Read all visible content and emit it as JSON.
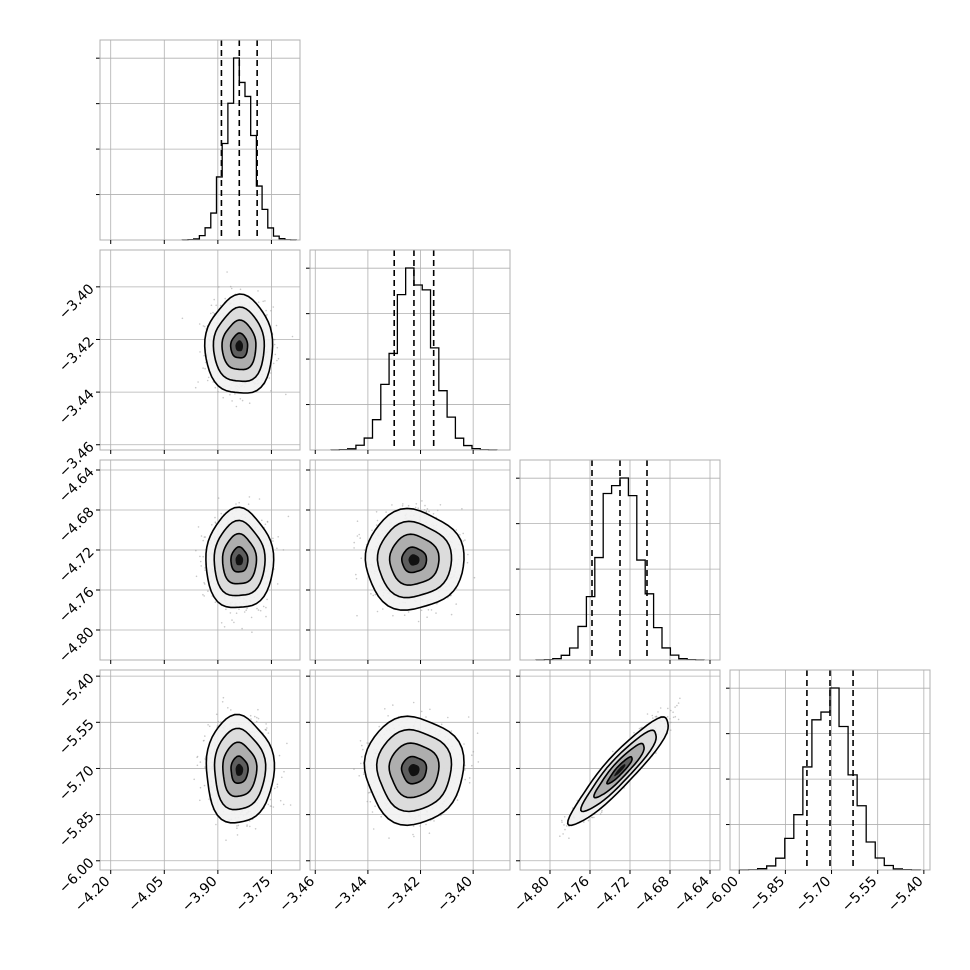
{
  "chart_data": {
    "type": "corner",
    "parameters": 4,
    "grid": true,
    "params": [
      {
        "range": [
          -4.23,
          -3.67
        ],
        "ticks": [
          -4.2,
          -4.05,
          -3.9,
          -3.75
        ],
        "tick_labels": [
          "−4.20",
          "−4.05",
          "−3.90",
          "−3.75"
        ],
        "mean": -3.84,
        "sd": 0.038,
        "quantiles": [
          -3.89,
          -3.84,
          -3.79
        ]
      },
      {
        "range": [
          -3.462,
          -3.386
        ],
        "ticks": [
          -3.46,
          -3.44,
          -3.42,
          -3.4
        ],
        "tick_labels": [
          "−3.46",
          "−3.44",
          "−3.42",
          "−3.40"
        ],
        "mean": -3.4225,
        "sd": 0.0075,
        "quantiles": [
          -3.43,
          -3.4225,
          -3.415
        ]
      },
      {
        "range": [
          -4.83,
          -4.63
        ],
        "ticks": [
          -4.8,
          -4.76,
          -4.72,
          -4.68,
          -4.64
        ],
        "tick_labels": [
          "−4.80",
          "−4.76",
          "−4.72",
          "−4.68",
          "−4.64"
        ],
        "y_tick_labels": [
          "−4.64",
          "−4.68",
          "−4.72",
          "−4.76",
          "−4.80"
        ],
        "mean": -4.73,
        "sd": 0.02,
        "quantiles": [
          -4.758,
          -4.73,
          -4.703
        ]
      },
      {
        "range": [
          -6.03,
          -5.38
        ],
        "ticks": [
          -6.0,
          -5.85,
          -5.7,
          -5.55,
          -5.4
        ],
        "tick_labels": [
          "−6.00",
          "−5.85",
          "−5.70",
          "−5.55",
          "−5.40"
        ],
        "mean": -5.705,
        "sd": 0.07,
        "quantiles": [
          -5.78,
          -5.705,
          -5.63
        ]
      }
    ],
    "correlations": {
      "1-0": 0.0,
      "2-0": 0.0,
      "2-1": 0.0,
      "3-0": 0.0,
      "3-1": 0.0,
      "3-2": 0.92
    },
    "hist_bins": 20,
    "scatter_points_per_panel": 1600,
    "contour_levels_sigma": [
      0.5,
      1.0,
      1.5,
      2.0
    ],
    "colors": {
      "axes": "#b0b0b0",
      "hist": "#000000",
      "points": "#9a9a9a"
    }
  }
}
